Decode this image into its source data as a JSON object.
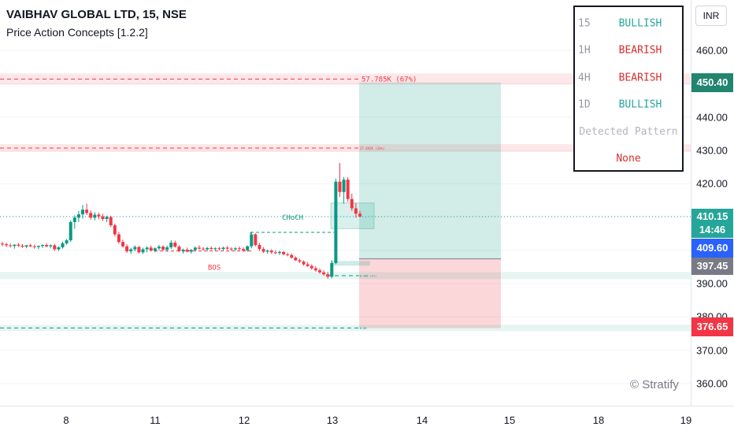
{
  "header": {
    "title": "VAIBHAV GLOBAL LTD, 15, NSE",
    "indicator": "Price Action Concepts [1.2.2]"
  },
  "currency_button": "INR",
  "watermark": "© Stratify",
  "mtf_table": {
    "rows": [
      {
        "tf": "15",
        "trend": "BULLISH",
        "color": "#26a69a"
      },
      {
        "tf": "1H",
        "trend": "BEARISH",
        "color": "#d32f2f"
      },
      {
        "tf": "4H",
        "trend": "BEARISH",
        "color": "#d32f2f"
      },
      {
        "tf": "1D",
        "trend": "BULLISH",
        "color": "#26a69a"
      }
    ],
    "pattern_header": "Detected Pattern",
    "pattern_value": "None"
  },
  "price_labels": {
    "target": {
      "value": "450.40",
      "color": "#22856f"
    },
    "last": {
      "value": "410.15",
      "time": "14:46",
      "color": "#26a69a"
    },
    "level": {
      "value": "409.60",
      "color": "#2962ff"
    },
    "entry": {
      "value": "397.45",
      "color": "#787b86"
    },
    "stop": {
      "value": "376.65",
      "color": "#f23645"
    }
  },
  "chart_data": {
    "type": "candlestick",
    "ylim": [
      355,
      465
    ],
    "y_ticks": [
      "460.00",
      "450.00",
      "440.00",
      "430.00",
      "420.00",
      "410.00",
      "400.00",
      "390.00",
      "380.00",
      "370.00",
      "360.00"
    ],
    "x_ticks": [
      "8",
      "11",
      "12",
      "13",
      "14",
      "15",
      "18",
      "19"
    ],
    "candles": [
      [
        402,
        402.5,
        401.2,
        401.8
      ],
      [
        401.8,
        402.3,
        401.0,
        401.5
      ],
      [
        401.5,
        402.0,
        400.8,
        401.3
      ],
      [
        401.3,
        401.8,
        400.5,
        401.7
      ],
      [
        401.7,
        402.2,
        401.0,
        401.4
      ],
      [
        401.4,
        401.9,
        400.7,
        401.1
      ],
      [
        401.1,
        401.6,
        400.6,
        401.5
      ],
      [
        401.5,
        402.0,
        400.9,
        401.2
      ],
      [
        401.2,
        401.7,
        400.5,
        401.0
      ],
      [
        401.0,
        401.5,
        400.3,
        401.3
      ],
      [
        401.3,
        401.8,
        400.7,
        401.6
      ],
      [
        401.6,
        402.1,
        400.9,
        401.2
      ],
      [
        401.2,
        401.8,
        400.6,
        401.5
      ],
      [
        401.5,
        401.9,
        399.8,
        400.3
      ],
      [
        400.3,
        401.2,
        399.8,
        400.9
      ],
      [
        400.9,
        402.6,
        400.5,
        402.1
      ],
      [
        402.1,
        403.4,
        401.7,
        403.0
      ],
      [
        403.0,
        409.0,
        402.5,
        408.5
      ],
      [
        408.5,
        410.5,
        406.5,
        409.8
      ],
      [
        409.8,
        411.8,
        408.5,
        410.8
      ],
      [
        410.8,
        413.6,
        409.5,
        412.2
      ],
      [
        412.2,
        414.0,
        410.6,
        411.2
      ],
      [
        411.2,
        412.0,
        409.2,
        409.8
      ],
      [
        409.8,
        411.5,
        409.0,
        410.7
      ],
      [
        410.7,
        411.3,
        409.3,
        410.2
      ],
      [
        410.2,
        411.0,
        408.8,
        409.4
      ],
      [
        409.4,
        410.4,
        408.5,
        410.0
      ],
      [
        410.0,
        410.4,
        407.0,
        407.5
      ],
      [
        407.5,
        408.0,
        404.2,
        404.8
      ],
      [
        404.8,
        405.5,
        402.0,
        402.5
      ],
      [
        402.5,
        403.2,
        400.8,
        401.2
      ],
      [
        401.2,
        401.8,
        399.2,
        399.7
      ],
      [
        399.7,
        400.8,
        398.9,
        400.3
      ],
      [
        400.3,
        401.5,
        399.7,
        401.0
      ],
      [
        401.0,
        401.3,
        399.0,
        399.4
      ],
      [
        399.4,
        400.8,
        398.9,
        400.3
      ],
      [
        400.3,
        401.2,
        399.4,
        400.8
      ],
      [
        400.8,
        401.4,
        399.6,
        399.9
      ],
      [
        399.9,
        400.9,
        399.4,
        400.6
      ],
      [
        400.6,
        401.6,
        400.0,
        401.1
      ],
      [
        401.1,
        401.5,
        399.8,
        400.2
      ],
      [
        400.2,
        401.4,
        399.6,
        400.9
      ],
      [
        400.9,
        403.0,
        400.4,
        402.3
      ],
      [
        402.3,
        402.9,
        400.8,
        401.1
      ],
      [
        401.1,
        401.5,
        399.5,
        399.8
      ],
      [
        399.8,
        400.5,
        399.0,
        400.2
      ],
      [
        400.2,
        400.8,
        399.4,
        399.6
      ],
      [
        399.6,
        400.4,
        399.0,
        400.1
      ],
      [
        400.1,
        401.2,
        399.7,
        400.8
      ],
      [
        400.8,
        401.5,
        400.2,
        400.5
      ],
      [
        400.5,
        401.0,
        399.9,
        400.3
      ],
      [
        400.3,
        401.0,
        399.8,
        400.7
      ],
      [
        400.7,
        401.2,
        400.1,
        400.4
      ],
      [
        400.4,
        400.9,
        399.8,
        400.6
      ],
      [
        400.6,
        401.0,
        400.0,
        400.4
      ],
      [
        400.4,
        401.1,
        399.9,
        400.8
      ],
      [
        400.8,
        401.3,
        400.1,
        400.5
      ],
      [
        400.5,
        400.9,
        399.9,
        400.3
      ],
      [
        400.3,
        401.0,
        399.8,
        400.6
      ],
      [
        400.6,
        401.2,
        400.0,
        400.4
      ],
      [
        400.4,
        400.9,
        399.6,
        400.0
      ],
      [
        400.0,
        401.5,
        399.6,
        401.2
      ],
      [
        401.2,
        405.6,
        400.6,
        404.8
      ],
      [
        404.8,
        405.1,
        401.2,
        401.6
      ],
      [
        401.6,
        402.2,
        399.8,
        400.4
      ],
      [
        400.4,
        401.0,
        399.2,
        399.6
      ],
      [
        399.6,
        400.2,
        399.0,
        399.9
      ],
      [
        399.9,
        400.3,
        398.9,
        399.4
      ],
      [
        399.4,
        400.0,
        398.8,
        399.2
      ],
      [
        399.2,
        399.9,
        398.6,
        399.5
      ],
      [
        399.5,
        399.8,
        398.5,
        398.8
      ],
      [
        398.8,
        399.3,
        398.2,
        398.6
      ],
      [
        398.6,
        399.0,
        397.5,
        397.8
      ],
      [
        397.8,
        398.2,
        396.8,
        397.0
      ],
      [
        397.0,
        397.5,
        396.2,
        396.6
      ],
      [
        396.6,
        397.0,
        395.4,
        395.8
      ],
      [
        395.8,
        396.5,
        395.0,
        395.3
      ],
      [
        395.3,
        395.8,
        394.2,
        394.6
      ],
      [
        394.6,
        395.2,
        393.6,
        394.0
      ],
      [
        394.0,
        394.6,
        393.0,
        393.4
      ],
      [
        393.4,
        394.0,
        392.4,
        392.8
      ],
      [
        392.8,
        393.5,
        391.5,
        392.1
      ],
      [
        392.1,
        397.0,
        391.6,
        396.2
      ],
      [
        396.2,
        421.5,
        395.8,
        420.6
      ],
      [
        420.6,
        426.2,
        416.0,
        417.5
      ],
      [
        417.5,
        422.0,
        414.0,
        421.2
      ],
      [
        421.2,
        422.0,
        414.5,
        415.4
      ],
      [
        415.4,
        417.0,
        411.8,
        412.6
      ],
      [
        412.6,
        414.2,
        409.8,
        411.0
      ],
      [
        411.0,
        411.8,
        409.9,
        410.15
      ]
    ],
    "levels": [
      {
        "label": "57.785K (67%)",
        "price": 451.4,
        "color": "#f23645"
      },
      {
        "label": "27.692K (32%)",
        "price": 430.7,
        "color": "#f23645"
      },
      {
        "label": "CHoCH",
        "price": 405.4,
        "color": "#089981"
      },
      {
        "label": "BOS",
        "price": 399.8,
        "color": "#f23645"
      },
      {
        "label": "8.486 (1%)",
        "price": 392.4,
        "color": "#089981"
      },
      {
        "label": "0.00",
        "price": 376.7,
        "color": "#089981"
      }
    ],
    "position": {
      "target": 450.4,
      "entry": 397.45,
      "stop": 376.65
    },
    "last_price_line": 410.15
  }
}
